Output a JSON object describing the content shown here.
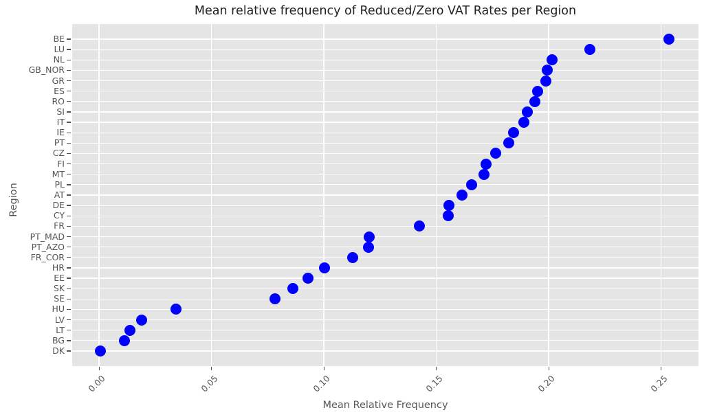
{
  "chart_data": {
    "type": "scatter",
    "title": "Mean relative frequency of Reduced/Zero VAT Rates per Region",
    "xlabel": "Mean Relative Frequency",
    "ylabel": "Region",
    "categories": [
      "BE",
      "LU",
      "NL",
      "GB_NOR",
      "GR",
      "ES",
      "RO",
      "SI",
      "IT",
      "IE",
      "PT",
      "CZ",
      "FI",
      "MT",
      "PL",
      "AT",
      "DE",
      "CY",
      "FR",
      "PT_MAD",
      "PT_AZO",
      "FR_COR",
      "HR",
      "EE",
      "SK",
      "SE",
      "HU",
      "LV",
      "LT",
      "BG",
      "DK"
    ],
    "values": [
      0.2535,
      0.2183,
      0.2014,
      0.1993,
      0.1987,
      0.1949,
      0.1939,
      0.1904,
      0.1889,
      0.1843,
      0.1822,
      0.1764,
      0.1721,
      0.1712,
      0.1657,
      0.1614,
      0.1555,
      0.1552,
      0.1424,
      0.1201,
      0.1198,
      0.1128,
      0.1002,
      0.0929,
      0.0861,
      0.0782,
      0.0342,
      0.0189,
      0.0137,
      0.0112,
      0.0005
    ],
    "xticks": [
      0,
      0.05,
      0.1,
      0.15,
      0.2,
      0.25
    ],
    "xtick_labels": [
      "0.00",
      "0.05",
      "0.10",
      "0.15",
      "0.20",
      "0.25"
    ],
    "xlim": [
      -0.012,
      0.2666
    ],
    "grid": true,
    "legend_position": "none",
    "colors": {
      "dot": "#0000ff",
      "plot_bg": "#e5e5e5",
      "grid": "#ffffff",
      "tick_text": "#555555",
      "title_text": "#1f1f1f",
      "figure_bg": "#ffffff"
    }
  }
}
